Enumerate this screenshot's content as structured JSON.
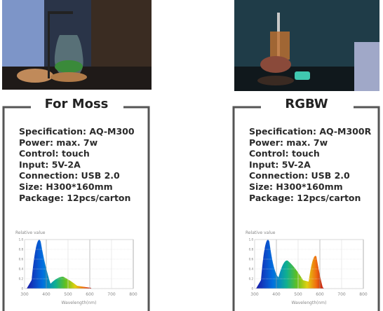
{
  "panels": [
    {
      "title": "For Moss",
      "specs": [
        "Specification: AQ-M300",
        "Power: max. 7w",
        "Control: touch",
        "Input: 5V-2A",
        "Connection: USB 2.0",
        "Size: H300*160mm",
        "Package: 12pcs/carton"
      ],
      "spectrum": {
        "y_axis_label": "Relative value",
        "x_axis_label": "Wavelength(nm)",
        "x_ticks": [
          "300",
          "400",
          "500",
          "600",
          "700",
          "800"
        ],
        "y_ticks": [
          "1.0",
          "0.8",
          "0.6",
          "0.4",
          "0.2",
          "0"
        ]
      }
    },
    {
      "title": "RGBW",
      "specs": [
        "Specification: AQ-M300R",
        "Power: max. 7w",
        "Control: touch",
        "Input: 5V-2A",
        "Connection: USB 2.0",
        "Size: H300*160mm",
        "Package: 12pcs/carton"
      ],
      "spectrum": {
        "y_axis_label": "Relative value",
        "x_axis_label": "Wavelength(nm)",
        "x_ticks": [
          "300",
          "400",
          "500",
          "600",
          "700",
          "800"
        ],
        "y_ticks": [
          "1.0",
          "0.8",
          "0.6",
          "0.4",
          "0.2",
          "0"
        ]
      }
    }
  ]
}
